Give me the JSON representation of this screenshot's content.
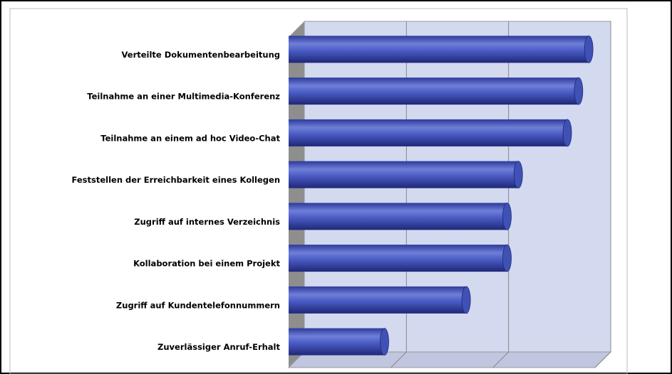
{
  "chart_data": {
    "type": "bar",
    "orientation": "horizontal",
    "style": "3d-cylinder",
    "categories": [
      "Verteilte Dokumentenbearbeitung",
      "Teilnahme an einer Multimedia-Konferenz",
      "Teilnahme an einem ad hoc Video-Chat",
      "Feststellen der Erreichbarkeit eines Kollegen",
      "Zugriff auf internes Verzeichnis",
      "Kollaboration bei einem Projekt",
      "Zugriff auf Kundentelefonnummern",
      "Zuverlässiger Anruf-Erhalt"
    ],
    "values": [
      2.98,
      2.88,
      2.77,
      2.29,
      2.18,
      2.18,
      1.78,
      0.98
    ],
    "color": "#3f51b5",
    "xlim": [
      0,
      3
    ],
    "xticks": [
      0,
      1,
      2,
      3
    ],
    "grid": true
  }
}
